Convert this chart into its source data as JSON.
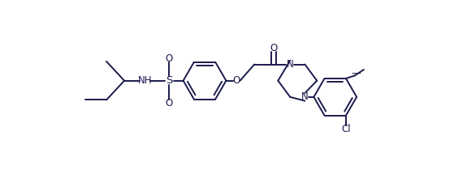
{
  "background_color": "#ffffff",
  "line_color": "#1a1a4e",
  "line_width": 1.4,
  "font_size": 8.5,
  "figsize": [
    5.59,
    2.36
  ],
  "dpi": 100,
  "xlim": [
    0,
    11.2
  ],
  "ylim": [
    -3.2,
    3.2
  ]
}
